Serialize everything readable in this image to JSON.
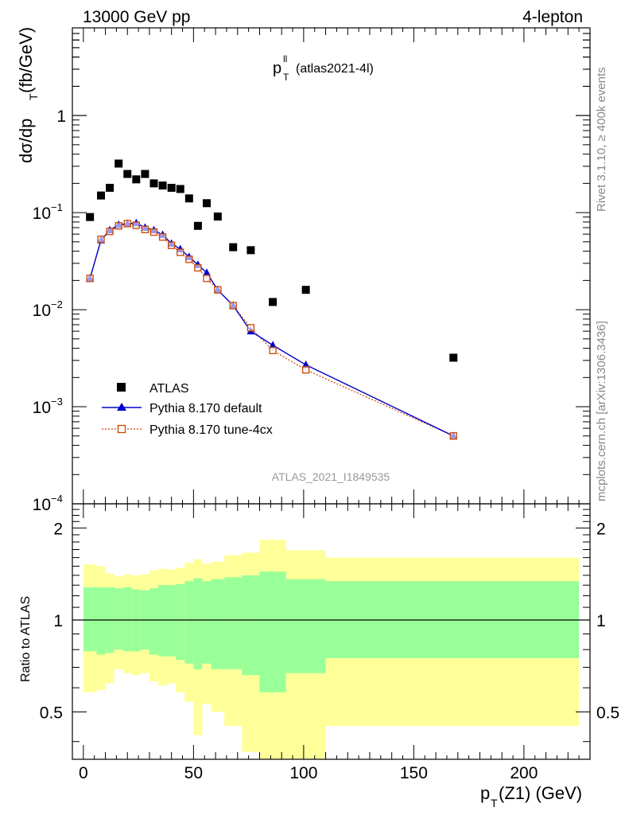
{
  "header": {
    "left": "13000 GeV pp",
    "right": "4-lepton"
  },
  "plot_title": {
    "main": "p",
    "sup": "ll",
    "sub": "T",
    "tag": "(atlas2021-4l)"
  },
  "side_labels": {
    "rivet": "Rivet 3.1.10, ≥ 400k events",
    "mcplots": "mcplots.cern.ch [arXiv:1306.3436]"
  },
  "watermark": "ATLAS_2021_I1849535",
  "main_ylabel": {
    "a": "dσ/dp",
    "b": "T",
    "c": " (fb/GeV)"
  },
  "ratio_ylabel": "Ratio to ATLAS",
  "xlabel": {
    "a": "p",
    "b": "T",
    "c": "(Z1) (GeV)"
  },
  "legend": {
    "atlas": "ATLAS",
    "default": "Pythia 8.170 default",
    "tune": "Pythia 8.170 tune-4cx"
  },
  "colors": {
    "atlas": "#000000",
    "default": "#0000cc",
    "tune": "#cc4400",
    "band_inner": "#99ff99",
    "band_outer": "#ffff99"
  },
  "y_ticks_main": [
    {
      "value": 1,
      "base": "1",
      "exp": ""
    },
    {
      "value": 0.1,
      "base": "10",
      "exp": "−1"
    },
    {
      "value": 0.01,
      "base": "10",
      "exp": "−2"
    },
    {
      "value": 0.001,
      "base": "10",
      "exp": "−3"
    },
    {
      "value": 0.0001,
      "base": "10",
      "exp": "−4"
    }
  ],
  "y_ticks_ratio": [
    "2",
    "1",
    "0.5"
  ],
  "x_ticks": [
    "0",
    "50",
    "100",
    "150",
    "200"
  ],
  "chart_data": [
    {
      "type": "scatter",
      "title": "",
      "xlabel": "p_T(Z1) (GeV)",
      "ylabel": "dσ/dp_T (fb/GeV)",
      "yscale": "log",
      "xlim": [
        -5,
        230
      ],
      "ylim": [
        0.0001,
        8
      ],
      "series": [
        {
          "name": "ATLAS",
          "marker": "square",
          "x": [
            3,
            8,
            12,
            16,
            20,
            24,
            28,
            32,
            36,
            40,
            44,
            48,
            52,
            56,
            61,
            68,
            76,
            86,
            101,
            168
          ],
          "y": [
            0.09,
            0.15,
            0.18,
            0.32,
            0.25,
            0.22,
            0.25,
            0.2,
            0.19,
            0.18,
            0.175,
            0.14,
            0.073,
            0.125,
            0.091,
            0.044,
            0.041,
            0.012,
            0.016,
            0.0032
          ]
        },
        {
          "name": "Pythia 8.170 default",
          "marker": "triangle",
          "x": [
            3,
            8,
            12,
            16,
            20,
            24,
            28,
            32,
            36,
            40,
            44,
            48,
            52,
            56,
            61,
            68,
            76,
            86,
            101,
            168
          ],
          "y": [
            0.021,
            0.052,
            0.066,
            0.075,
            0.077,
            0.078,
            0.07,
            0.066,
            0.059,
            0.048,
            0.042,
            0.035,
            0.029,
            0.024,
            0.016,
            0.011,
            0.006,
            0.0043,
            0.0027,
            0.0005
          ]
        },
        {
          "name": "Pythia 8.170 tune-4cx",
          "marker": "open-square",
          "x": [
            3,
            8,
            12,
            16,
            20,
            24,
            28,
            32,
            36,
            40,
            44,
            48,
            52,
            56,
            61,
            68,
            76,
            86,
            101,
            168
          ],
          "y": [
            0.021,
            0.053,
            0.064,
            0.073,
            0.077,
            0.074,
            0.067,
            0.063,
            0.056,
            0.046,
            0.039,
            0.033,
            0.027,
            0.021,
            0.016,
            0.011,
            0.0065,
            0.0038,
            0.0024,
            0.0005
          ]
        }
      ]
    },
    {
      "type": "area",
      "title": "",
      "xlabel": "p_T(Z1) (GeV)",
      "ylabel": "Ratio to ATLAS",
      "yscale": "log",
      "xlim": [
        -5,
        230
      ],
      "ylim": [
        0.35,
        2.4
      ],
      "reference_line": 1,
      "bins": [
        {
          "lo": 0,
          "hi": 6,
          "inner": [
            0.79,
            1.28
          ],
          "outer": [
            0.58,
            1.52
          ]
        },
        {
          "lo": 6,
          "hi": 10,
          "inner": [
            0.77,
            1.28
          ],
          "outer": [
            0.59,
            1.5
          ]
        },
        {
          "lo": 10,
          "hi": 14,
          "inner": [
            0.78,
            1.28
          ],
          "outer": [
            0.62,
            1.42
          ]
        },
        {
          "lo": 14,
          "hi": 18,
          "inner": [
            0.8,
            1.27
          ],
          "outer": [
            0.69,
            1.39
          ]
        },
        {
          "lo": 18,
          "hi": 22,
          "inner": [
            0.79,
            1.28
          ],
          "outer": [
            0.67,
            1.41
          ]
        },
        {
          "lo": 22,
          "hi": 26,
          "inner": [
            0.79,
            1.26
          ],
          "outer": [
            0.66,
            1.4
          ]
        },
        {
          "lo": 26,
          "hi": 30,
          "inner": [
            0.8,
            1.25
          ],
          "outer": [
            0.67,
            1.41
          ]
        },
        {
          "lo": 30,
          "hi": 34,
          "inner": [
            0.77,
            1.27
          ],
          "outer": [
            0.63,
            1.45
          ]
        },
        {
          "lo": 34,
          "hi": 38,
          "inner": [
            0.76,
            1.3
          ],
          "outer": [
            0.61,
            1.47
          ]
        },
        {
          "lo": 38,
          "hi": 42,
          "inner": [
            0.76,
            1.3
          ],
          "outer": [
            0.62,
            1.46
          ]
        },
        {
          "lo": 42,
          "hi": 46,
          "inner": [
            0.74,
            1.31
          ],
          "outer": [
            0.58,
            1.48
          ]
        },
        {
          "lo": 46,
          "hi": 50,
          "inner": [
            0.72,
            1.34
          ],
          "outer": [
            0.54,
            1.54
          ]
        },
        {
          "lo": 50,
          "hi": 54,
          "inner": [
            0.69,
            1.37
          ],
          "outer": [
            0.42,
            1.58
          ]
        },
        {
          "lo": 54,
          "hi": 58,
          "inner": [
            0.72,
            1.34
          ],
          "outer": [
            0.53,
            1.53
          ]
        },
        {
          "lo": 58,
          "hi": 64,
          "inner": [
            0.69,
            1.36
          ],
          "outer": [
            0.5,
            1.55
          ]
        },
        {
          "lo": 64,
          "hi": 72,
          "inner": [
            0.69,
            1.38
          ],
          "outer": [
            0.45,
            1.63
          ]
        },
        {
          "lo": 72,
          "hi": 80,
          "inner": [
            0.66,
            1.4
          ],
          "outer": [
            0.37,
            1.66
          ]
        },
        {
          "lo": 80,
          "hi": 92,
          "inner": [
            0.58,
            1.44
          ],
          "outer": [
            0.3,
            1.83
          ]
        },
        {
          "lo": 92,
          "hi": 110,
          "inner": [
            0.67,
            1.36
          ],
          "outer": [
            0.31,
            1.69
          ]
        },
        {
          "lo": 110,
          "hi": 225,
          "inner": [
            0.75,
            1.34
          ],
          "outer": [
            0.45,
            1.6
          ]
        }
      ]
    }
  ]
}
